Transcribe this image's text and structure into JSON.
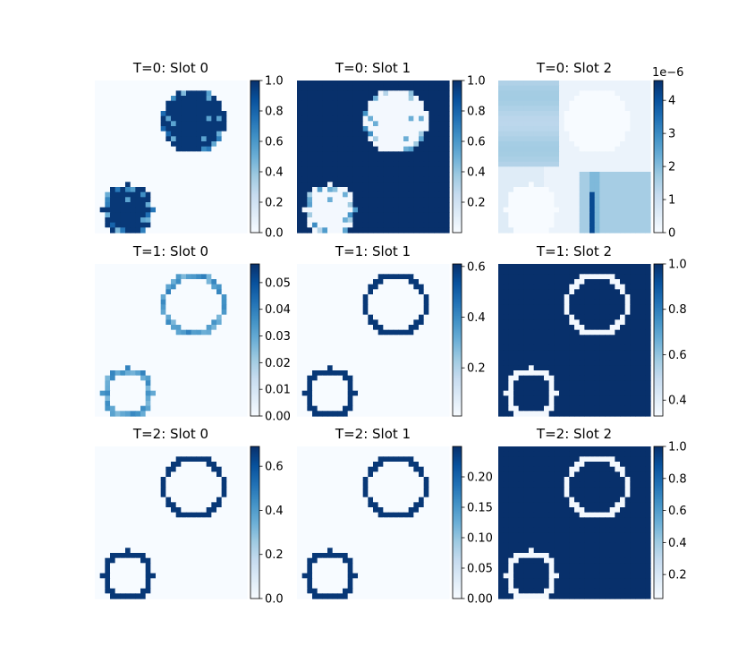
{
  "figure": {
    "colormap": "Blues",
    "cmap_light": "#f7fbff",
    "cmap_dark": "#08306b",
    "tick_color": "#000000"
  },
  "chart_data": [
    {
      "type": "heatmap",
      "title": "T=0: Slot 0",
      "pattern": "t0s0",
      "grid": [
        30,
        30
      ],
      "colorbar": {
        "vmin": 0,
        "vmax": 1,
        "ticks": [
          "0.0",
          "0.2",
          "0.4",
          "0.6",
          "0.8",
          "1.0"
        ],
        "tick_values": [
          0,
          0.2,
          0.4,
          0.6,
          0.8,
          1.0
        ],
        "exponent": ""
      }
    },
    {
      "type": "heatmap",
      "title": "T=0: Slot 1",
      "pattern": "t0s1",
      "grid": [
        30,
        30
      ],
      "colorbar": {
        "vmin": 0,
        "vmax": 1,
        "ticks": [
          "0.2",
          "0.4",
          "0.6",
          "0.8",
          "1.0"
        ],
        "tick_values": [
          0.2,
          0.4,
          0.6,
          0.8,
          1.0
        ],
        "exponent": ""
      }
    },
    {
      "type": "heatmap",
      "title": "T=0: Slot 2",
      "pattern": "t0s2",
      "grid": [
        30,
        30
      ],
      "colorbar": {
        "vmin": 0,
        "vmax": 4.6,
        "ticks": [
          "0",
          "1",
          "2",
          "3",
          "4"
        ],
        "tick_values": [
          0,
          1,
          2,
          3,
          4
        ],
        "exponent": "1e−6"
      }
    },
    {
      "type": "heatmap",
      "title": "T=1: Slot 0",
      "pattern": "ring_light",
      "grid": [
        30,
        30
      ],
      "colorbar": {
        "vmin": 0,
        "vmax": 0.057,
        "ticks": [
          "0.00",
          "0.01",
          "0.02",
          "0.03",
          "0.04",
          "0.05"
        ],
        "tick_values": [
          0,
          0.01,
          0.02,
          0.03,
          0.04,
          0.05
        ],
        "exponent": ""
      }
    },
    {
      "type": "heatmap",
      "title": "T=1: Slot 1",
      "pattern": "ring_dark",
      "grid": [
        30,
        30
      ],
      "colorbar": {
        "vmin": 0.01,
        "vmax": 0.61,
        "ticks": [
          "0.2",
          "0.4",
          "0.6"
        ],
        "tick_values": [
          0.2,
          0.4,
          0.6
        ],
        "exponent": ""
      }
    },
    {
      "type": "heatmap",
      "title": "T=1: Slot 2",
      "pattern": "inverse",
      "grid": [
        30,
        30
      ],
      "colorbar": {
        "vmin": 0.33,
        "vmax": 1.0,
        "ticks": [
          "0.4",
          "0.6",
          "0.8",
          "1.0"
        ],
        "tick_values": [
          0.4,
          0.6,
          0.8,
          1.0
        ],
        "exponent": ""
      }
    },
    {
      "type": "heatmap",
      "title": "T=2: Slot 0",
      "pattern": "ring_dark",
      "grid": [
        30,
        30
      ],
      "colorbar": {
        "vmin": 0,
        "vmax": 0.69,
        "ticks": [
          "0.0",
          "0.2",
          "0.4",
          "0.6"
        ],
        "tick_values": [
          0,
          0.2,
          0.4,
          0.6
        ],
        "exponent": ""
      }
    },
    {
      "type": "heatmap",
      "title": "T=2: Slot 1",
      "pattern": "ring_dark",
      "grid": [
        30,
        30
      ],
      "colorbar": {
        "vmin": 0,
        "vmax": 0.25,
        "ticks": [
          "0.00",
          "0.05",
          "0.10",
          "0.15",
          "0.20"
        ],
        "tick_values": [
          0,
          0.05,
          0.1,
          0.15,
          0.2
        ],
        "exponent": ""
      }
    },
    {
      "type": "heatmap",
      "title": "T=2: Slot 2",
      "pattern": "inverse",
      "grid": [
        30,
        30
      ],
      "colorbar": {
        "vmin": 0.05,
        "vmax": 1.0,
        "ticks": [
          "0.2",
          "0.4",
          "0.6",
          "0.8",
          "1.0"
        ],
        "tick_values": [
          0.2,
          0.4,
          0.6,
          0.8,
          1.0
        ],
        "exponent": ""
      }
    }
  ]
}
